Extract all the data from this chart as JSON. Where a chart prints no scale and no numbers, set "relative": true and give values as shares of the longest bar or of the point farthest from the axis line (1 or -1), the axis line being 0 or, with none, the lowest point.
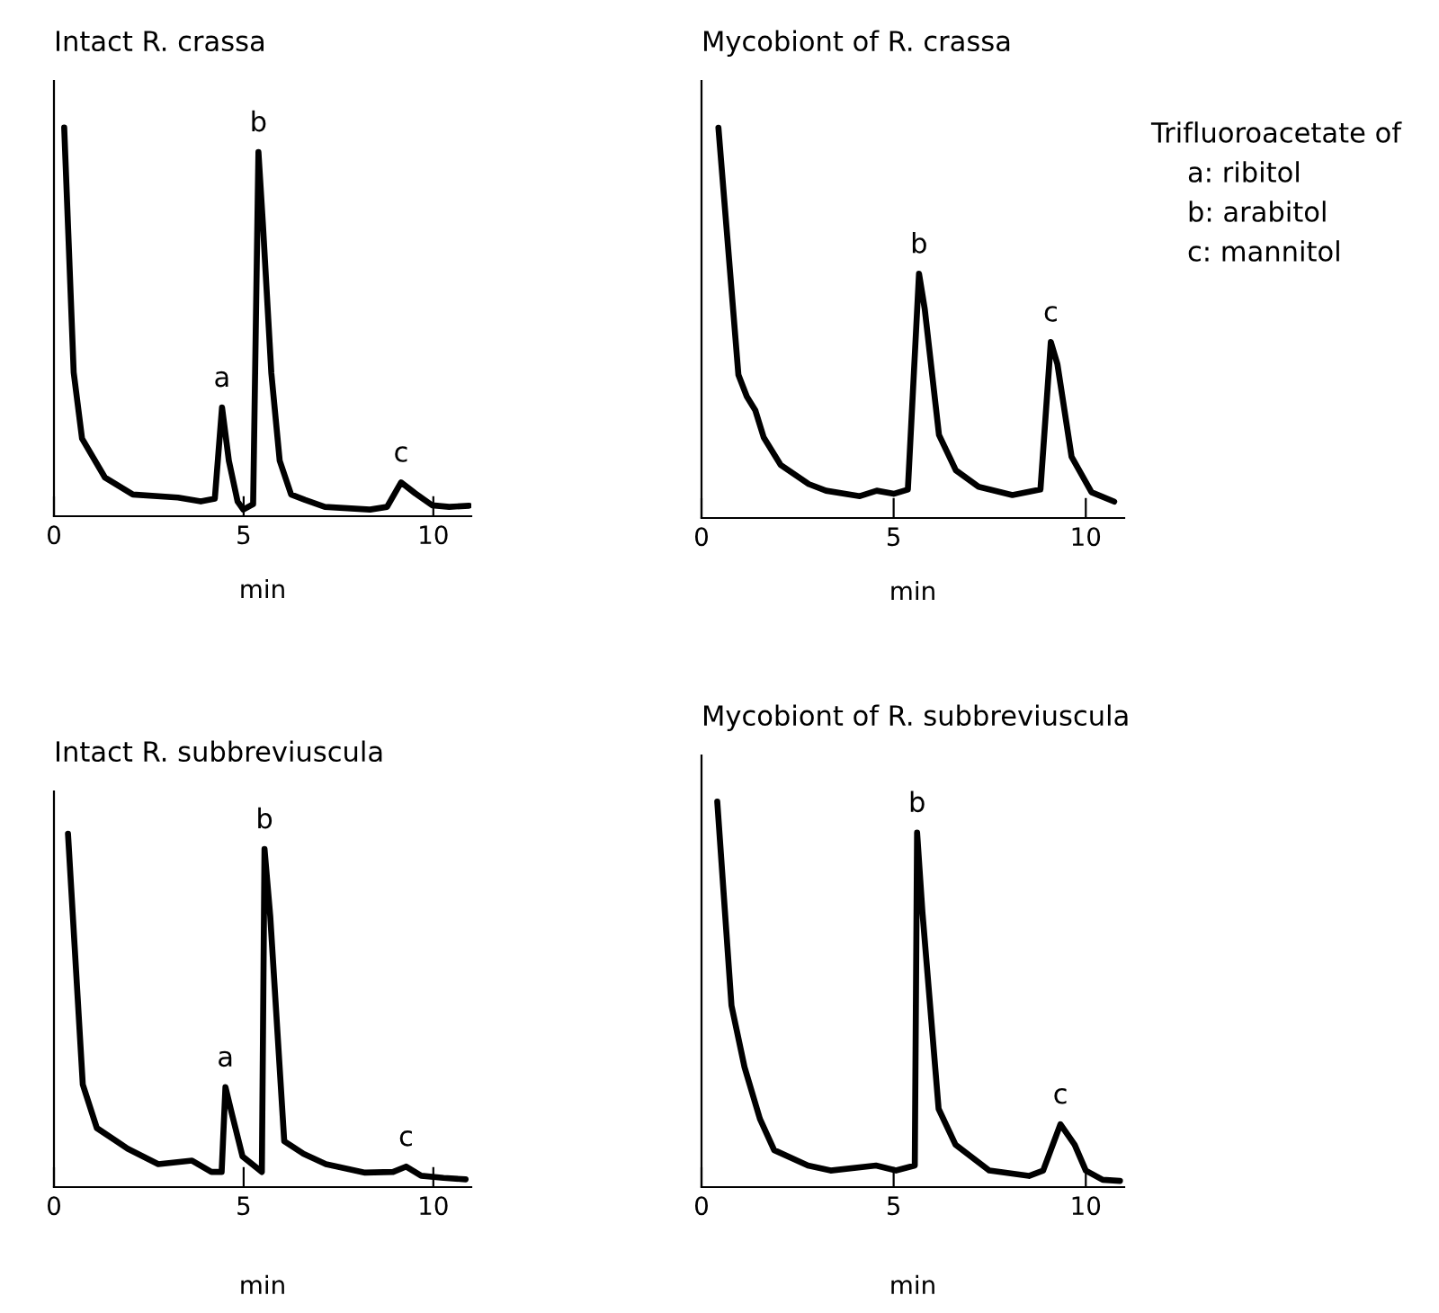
{
  "chart_data": [
    {
      "type": "line",
      "title": "Intact R. crassa",
      "xlabel": "min",
      "relative": true,
      "xlim": [
        0,
        11
      ],
      "xticks": [
        0,
        5,
        10
      ],
      "grid": false,
      "series": [
        {
          "color": "#000000",
          "x": [
            0.27,
            0.52,
            0.74,
            1.34,
            2.08,
            3.27,
            3.87,
            4.24,
            4.43,
            4.61,
            4.84,
            4.99,
            5.25,
            5.39,
            5.51,
            5.73,
            5.95,
            6.25,
            6.62,
            7.14,
            8.33,
            8.78,
            9.15,
            9.52,
            9.97,
            10.42,
            10.94
          ],
          "values": [
            1.0,
            0.37,
            0.2,
            0.1,
            0.056,
            0.048,
            0.038,
            0.045,
            0.28,
            0.143,
            0.038,
            0.017,
            0.031,
            0.937,
            0.747,
            0.368,
            0.143,
            0.056,
            0.042,
            0.024,
            0.017,
            0.024,
            0.087,
            0.059,
            0.028,
            0.024,
            0.027
          ]
        }
      ],
      "annotations": [
        {
          "text": "a",
          "x": 4.43,
          "y": 0.28
        },
        {
          "text": "b",
          "x": 5.39,
          "y": 0.937
        },
        {
          "text": "c",
          "x": 9.15,
          "y": 0.087
        }
      ]
    },
    {
      "type": "line",
      "title": "Mycobiont of R. crassa",
      "xlabel": "min",
      "relative": true,
      "xlim": [
        0,
        11
      ],
      "xticks": [
        0,
        5,
        10
      ],
      "grid": false,
      "series": [
        {
          "color": "#000000",
          "x": [
            0.44,
            0.96,
            1.18,
            1.4,
            1.62,
            2.06,
            2.79,
            3.24,
            4.12,
            4.56,
            5.0,
            5.37,
            5.66,
            5.81,
            6.18,
            6.62,
            7.21,
            8.09,
            8.82,
            9.09,
            9.26,
            9.63,
            10.15,
            10.74
          ],
          "values": [
            1.0,
            0.367,
            0.311,
            0.276,
            0.206,
            0.136,
            0.087,
            0.07,
            0.056,
            0.07,
            0.062,
            0.073,
            0.626,
            0.535,
            0.213,
            0.122,
            0.08,
            0.059,
            0.073,
            0.451,
            0.395,
            0.157,
            0.066,
            0.042
          ]
        }
      ],
      "annotations": [
        {
          "text": "b",
          "x": 5.66,
          "y": 0.626
        },
        {
          "text": "c",
          "x": 9.09,
          "y": 0.451
        },
        "Trifluoroacetate of",
        "a: ribitol",
        "b: arabitol",
        "c: mannitol"
      ]
    },
    {
      "type": "line",
      "title": "Intact R. subbreviuscula",
      "xlabel": "min",
      "relative": true,
      "xlim": [
        0,
        11
      ],
      "xticks": [
        0,
        5,
        10
      ],
      "grid": false,
      "series": [
        {
          "color": "#000000",
          "x": [
            0.37,
            0.76,
            1.13,
            1.94,
            2.75,
            3.64,
            4.15,
            4.42,
            4.52,
            4.7,
            4.97,
            5.48,
            5.55,
            5.7,
            6.07,
            6.58,
            7.17,
            8.2,
            8.94,
            9.28,
            9.68,
            10.27,
            10.85
          ],
          "values": [
            1.0,
            0.29,
            0.167,
            0.109,
            0.065,
            0.075,
            0.043,
            0.043,
            0.283,
            0.203,
            0.087,
            0.043,
            0.957,
            0.768,
            0.13,
            0.094,
            0.065,
            0.041,
            0.043,
            0.058,
            0.032,
            0.026,
            0.022
          ]
        }
      ],
      "annotations": [
        {
          "text": "a",
          "x": 4.52,
          "y": 0.283
        },
        {
          "text": "b",
          "x": 5.55,
          "y": 0.957
        },
        {
          "text": "c",
          "x": 9.28,
          "y": 0.058
        }
      ]
    },
    {
      "type": "line",
      "title": "Mycobiont of R. subbreviuscula",
      "xlabel": "min",
      "relative": true,
      "xlim": [
        0,
        11
      ],
      "xticks": [
        0,
        5,
        10
      ],
      "grid": false,
      "series": [
        {
          "color": "#000000",
          "x": [
            0.41,
            0.78,
            1.12,
            1.52,
            1.89,
            2.77,
            3.36,
            4.54,
            5.06,
            5.55,
            5.61,
            5.75,
            6.17,
            6.61,
            7.49,
            8.52,
            8.89,
            9.34,
            9.71,
            10.0,
            10.44,
            10.89
          ],
          "values": [
            1.0,
            0.471,
            0.311,
            0.177,
            0.096,
            0.056,
            0.043,
            0.056,
            0.043,
            0.056,
            0.92,
            0.712,
            0.203,
            0.11,
            0.043,
            0.029,
            0.043,
            0.163,
            0.11,
            0.043,
            0.019,
            0.016
          ]
        }
      ],
      "annotations": [
        {
          "text": "b",
          "x": 5.61,
          "y": 0.92
        },
        {
          "text": "c",
          "x": 9.34,
          "y": 0.163
        }
      ]
    }
  ]
}
